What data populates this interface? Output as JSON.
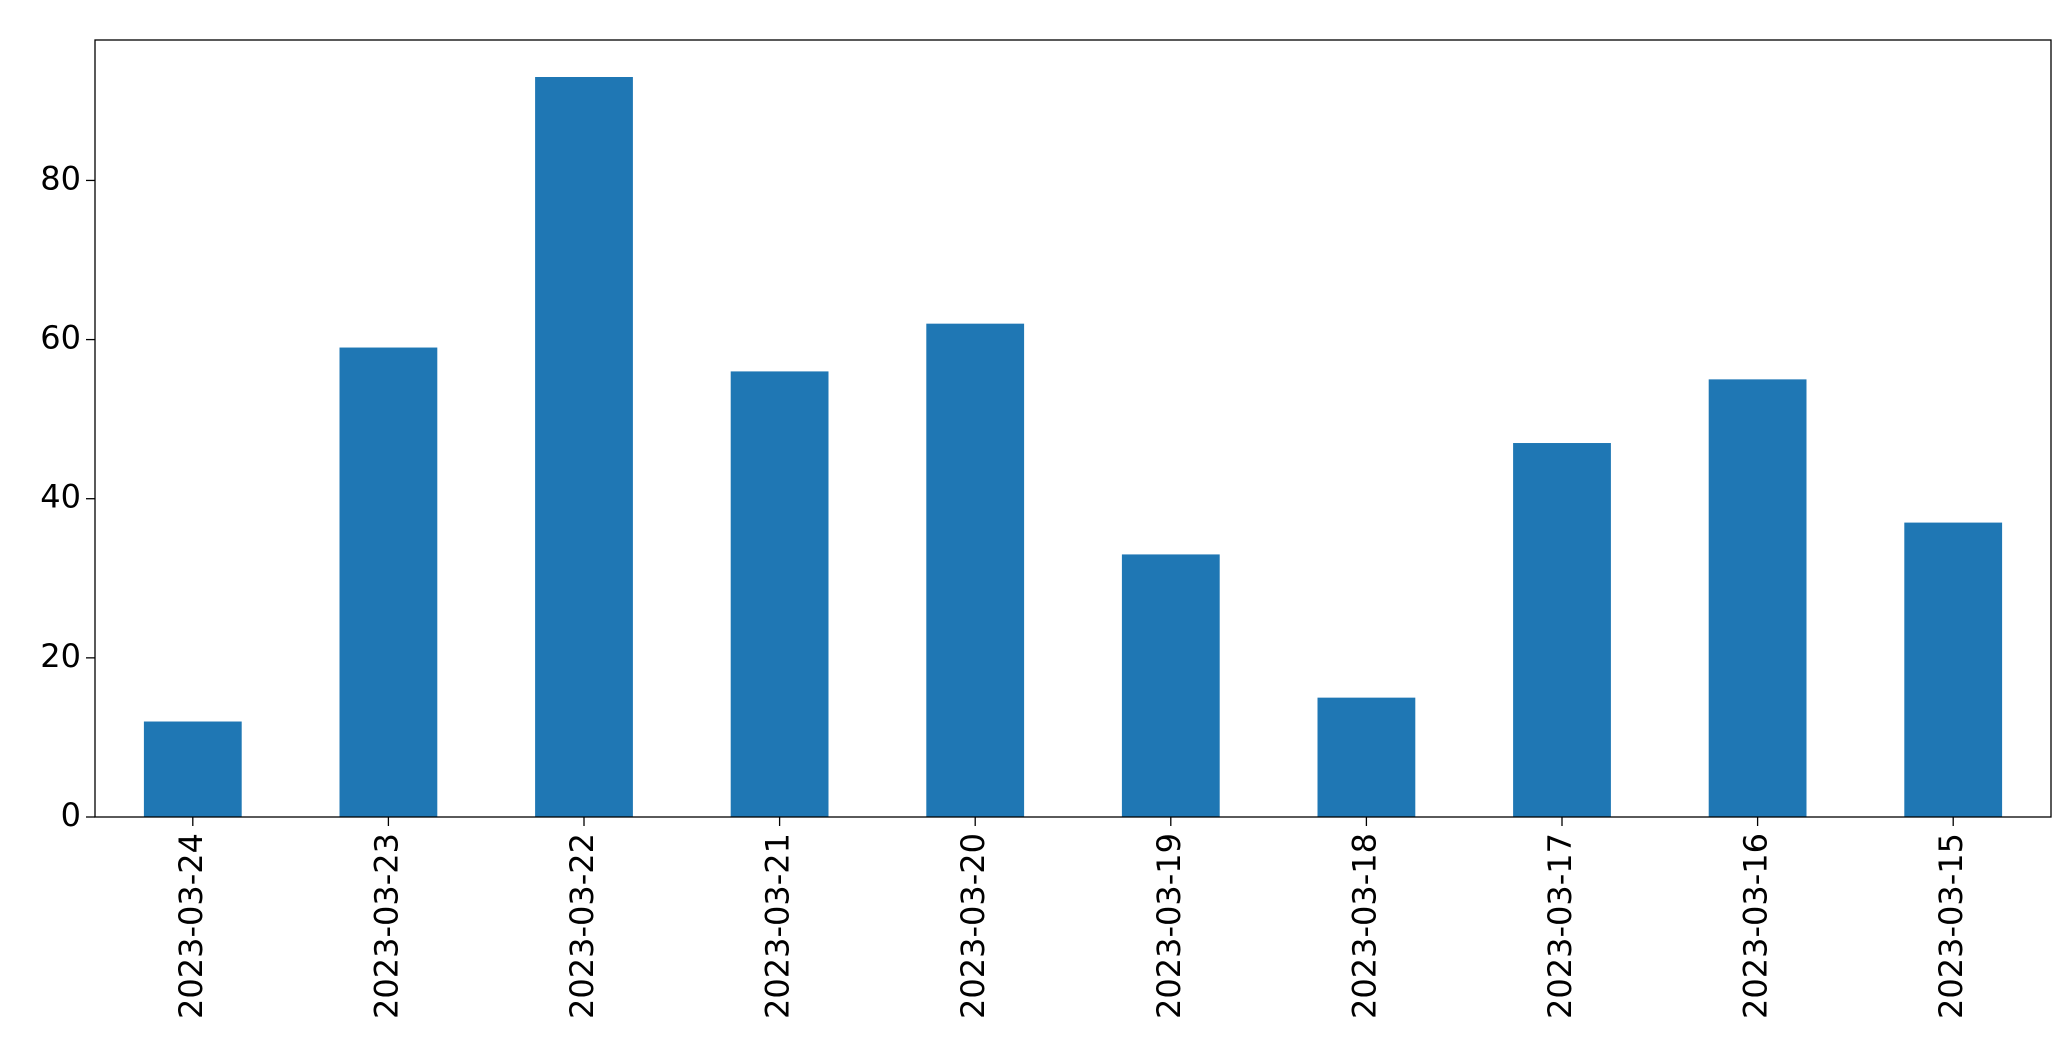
{
  "chart_data": {
    "type": "bar",
    "categories": [
      "2023-03-24",
      "2023-03-23",
      "2023-03-22",
      "2023-03-21",
      "2023-03-20",
      "2023-03-19",
      "2023-03-18",
      "2023-03-17",
      "2023-03-16",
      "2023-03-15"
    ],
    "values": [
      12,
      59,
      93,
      56,
      62,
      33,
      15,
      47,
      55,
      37
    ],
    "color": "#1f77b4",
    "ylim": [
      0,
      97.65
    ],
    "yticks": [
      0,
      20,
      40,
      60,
      80
    ],
    "grid": false
  }
}
